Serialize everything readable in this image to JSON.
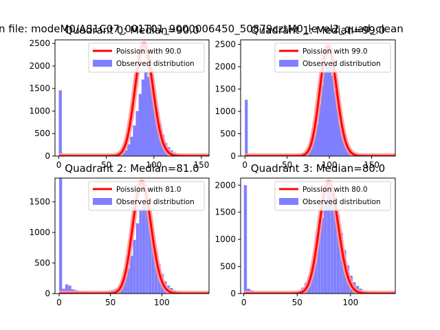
{
  "figure": {
    "suptitle": "n file: modeM0/AS1C07_001T01_9000006450_50879cztM0_level2_quad_clean",
    "hist_color": "#8080ff",
    "poisson_color": "#ff0000",
    "poisson_halo_color": "#ff9a9a"
  },
  "chart_data": [
    {
      "type": "bar",
      "title": "Quadrant 0: Median=90.0",
      "legend": [
        "Poission with 90.0",
        "Observed distribution"
      ],
      "legend_position": "top-right",
      "xlim": [
        -4,
        158
      ],
      "ylim": [
        0,
        2580
      ],
      "xticks": [
        0,
        50,
        100,
        150
      ],
      "yticks": [
        0,
        500,
        1000,
        1500,
        2000,
        2500
      ],
      "mean": 90,
      "poisson_peak": 2480,
      "bin_width": 3.15,
      "bins": [
        [
          0,
          1460
        ],
        [
          3,
          30
        ],
        [
          6,
          35
        ],
        [
          9,
          30
        ],
        [
          12,
          10
        ],
        [
          15,
          8
        ],
        [
          18,
          8
        ],
        [
          21,
          6
        ],
        [
          24,
          5
        ],
        [
          27,
          5
        ],
        [
          30,
          5
        ],
        [
          33,
          4
        ],
        [
          36,
          4
        ],
        [
          39,
          4
        ],
        [
          42,
          4
        ],
        [
          45,
          4
        ],
        [
          48,
          5
        ],
        [
          51,
          8
        ],
        [
          54,
          10
        ],
        [
          57,
          12
        ],
        [
          60,
          18
        ],
        [
          63,
          30
        ],
        [
          66,
          60
        ],
        [
          69,
          130
        ],
        [
          72,
          260
        ],
        [
          75,
          430
        ],
        [
          78,
          680
        ],
        [
          81,
          1000
        ],
        [
          84,
          1380
        ],
        [
          87,
          1700
        ],
        [
          90,
          1870
        ],
        [
          93,
          1760
        ],
        [
          96,
          1560
        ],
        [
          99,
          1300
        ],
        [
          102,
          1020
        ],
        [
          105,
          720
        ],
        [
          108,
          470
        ],
        [
          111,
          290
        ],
        [
          114,
          200
        ],
        [
          117,
          130
        ],
        [
          120,
          80
        ],
        [
          123,
          40
        ],
        [
          126,
          20
        ],
        [
          129,
          10
        ],
        [
          132,
          5
        ],
        [
          135,
          3
        ],
        [
          138,
          2
        ]
      ]
    },
    {
      "type": "bar",
      "title": "Quadrant 1: Median=99.0",
      "legend": [
        "Poission with 99.0",
        "Observed distribution"
      ],
      "legend_position": "top-right",
      "xlim": [
        -5,
        178
      ],
      "ylim": [
        0,
        2600
      ],
      "xticks": [
        0,
        50,
        100,
        150
      ],
      "yticks": [
        0,
        500,
        1000,
        1500,
        2000,
        2500
      ],
      "mean": 99,
      "poisson_peak": 2460,
      "bin_width": 3.4,
      "bins": [
        [
          0,
          1260
        ],
        [
          3,
          20
        ],
        [
          6,
          20
        ],
        [
          9,
          15
        ],
        [
          12,
          10
        ],
        [
          15,
          8
        ],
        [
          18,
          6
        ],
        [
          21,
          5
        ],
        [
          24,
          5
        ],
        [
          27,
          5
        ],
        [
          30,
          4
        ],
        [
          33,
          4
        ],
        [
          36,
          4
        ],
        [
          39,
          4
        ],
        [
          42,
          4
        ],
        [
          45,
          4
        ],
        [
          48,
          4
        ],
        [
          51,
          5
        ],
        [
          54,
          5
        ],
        [
          57,
          6
        ],
        [
          60,
          8
        ],
        [
          63,
          10
        ],
        [
          66,
          14
        ],
        [
          69,
          24
        ],
        [
          72,
          60
        ],
        [
          75,
          150
        ],
        [
          78,
          270
        ],
        [
          81,
          440
        ],
        [
          84,
          720
        ],
        [
          87,
          1150
        ],
        [
          90,
          1600
        ],
        [
          93,
          1900
        ],
        [
          96,
          2020
        ],
        [
          99,
          2000
        ],
        [
          102,
          1800
        ],
        [
          105,
          1450
        ],
        [
          108,
          1100
        ],
        [
          111,
          700
        ],
        [
          114,
          470
        ],
        [
          117,
          270
        ],
        [
          120,
          170
        ],
        [
          123,
          110
        ],
        [
          126,
          60
        ],
        [
          129,
          30
        ],
        [
          132,
          12
        ],
        [
          135,
          6
        ],
        [
          138,
          3
        ]
      ]
    },
    {
      "type": "bar",
      "title": "Quadrant 2: Median=81.0",
      "legend": [
        "Poission with 81.0",
        "Observed distribution"
      ],
      "legend_position": "top-right",
      "xlim": [
        -4,
        146
      ],
      "ylim": [
        0,
        1890
      ],
      "xticks": [
        0,
        50,
        100
      ],
      "yticks": [
        0,
        500,
        1000,
        1500
      ],
      "mean": 81,
      "poisson_peak": 1820,
      "bin_width": 2.9,
      "bins": [
        [
          0,
          1890
        ],
        [
          3,
          80
        ],
        [
          6,
          150
        ],
        [
          9,
          130
        ],
        [
          12,
          70
        ],
        [
          15,
          55
        ],
        [
          18,
          45
        ],
        [
          21,
          40
        ],
        [
          24,
          35
        ],
        [
          27,
          30
        ],
        [
          30,
          30
        ],
        [
          33,
          30
        ],
        [
          36,
          30
        ],
        [
          39,
          30
        ],
        [
          42,
          35
        ],
        [
          45,
          40
        ],
        [
          48,
          50
        ],
        [
          51,
          60
        ],
        [
          54,
          80
        ],
        [
          57,
          120
        ],
        [
          60,
          180
        ],
        [
          63,
          270
        ],
        [
          66,
          420
        ],
        [
          69,
          620
        ],
        [
          72,
          880
        ],
        [
          75,
          1150
        ],
        [
          78,
          1380
        ],
        [
          81,
          1460
        ],
        [
          84,
          1400
        ],
        [
          87,
          1220
        ],
        [
          90,
          950
        ],
        [
          93,
          700
        ],
        [
          96,
          480
        ],
        [
          99,
          320
        ],
        [
          102,
          200
        ],
        [
          105,
          130
        ],
        [
          108,
          90
        ],
        [
          111,
          55
        ],
        [
          114,
          35
        ],
        [
          117,
          20
        ],
        [
          120,
          12
        ],
        [
          123,
          6
        ],
        [
          126,
          3
        ]
      ]
    },
    {
      "type": "bar",
      "title": "Quadrant 3: Median=80.0",
      "legend": [
        "Poission with 80.0",
        "Observed distribution"
      ],
      "legend_position": "top-right",
      "xlim": [
        -3,
        142
      ],
      "ylim": [
        0,
        2130
      ],
      "xticks": [
        0,
        50,
        100
      ],
      "yticks": [
        0,
        500,
        1000,
        1500,
        2000
      ],
      "mean": 80,
      "poisson_peak": 2050,
      "bin_width": 2.9,
      "bins": [
        [
          0,
          2000
        ],
        [
          3,
          90
        ],
        [
          6,
          60
        ],
        [
          9,
          25
        ],
        [
          12,
          12
        ],
        [
          15,
          8
        ],
        [
          18,
          6
        ],
        [
          21,
          5
        ],
        [
          24,
          5
        ],
        [
          27,
          5
        ],
        [
          30,
          5
        ],
        [
          33,
          5
        ],
        [
          36,
          6
        ],
        [
          39,
          8
        ],
        [
          42,
          10
        ],
        [
          45,
          15
        ],
        [
          48,
          30
        ],
        [
          51,
          60
        ],
        [
          54,
          110
        ],
        [
          57,
          200
        ],
        [
          60,
          330
        ],
        [
          63,
          510
        ],
        [
          66,
          760
        ],
        [
          69,
          1080
        ],
        [
          72,
          1400
        ],
        [
          75,
          1700
        ],
        [
          78,
          1880
        ],
        [
          81,
          1860
        ],
        [
          84,
          1720
        ],
        [
          87,
          1450
        ],
        [
          90,
          1120
        ],
        [
          93,
          800
        ],
        [
          96,
          520
        ],
        [
          99,
          330
        ],
        [
          102,
          210
        ],
        [
          105,
          140
        ],
        [
          108,
          90
        ],
        [
          111,
          55
        ],
        [
          114,
          30
        ],
        [
          117,
          15
        ],
        [
          120,
          8
        ],
        [
          123,
          4
        ]
      ]
    }
  ]
}
